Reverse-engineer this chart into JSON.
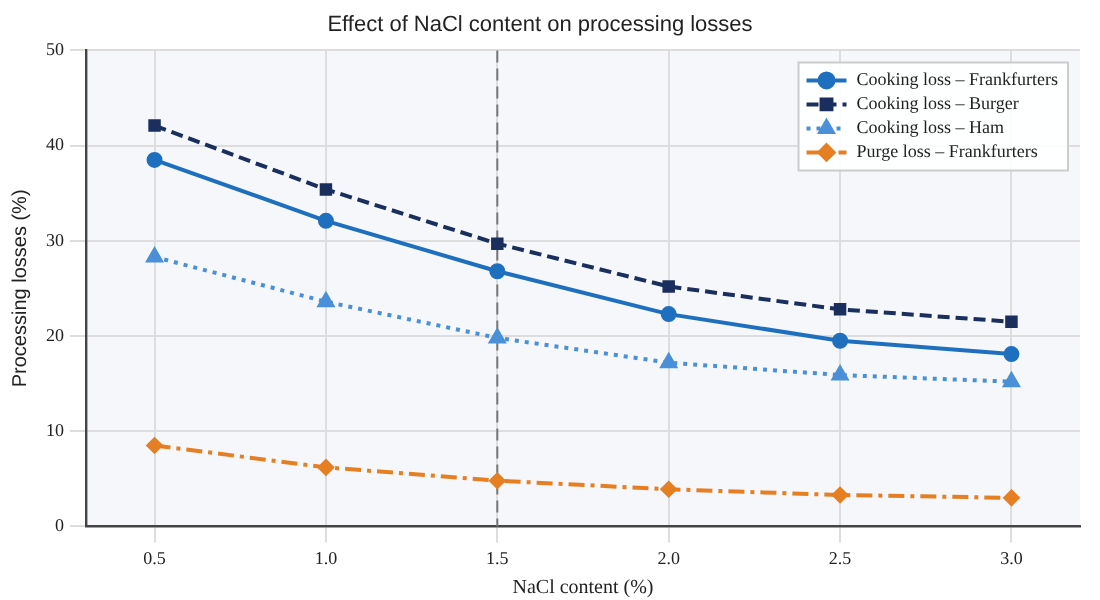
{
  "chart_data": {
    "type": "line",
    "title": "Effect of NaCl content on processing losses",
    "xlabel": "NaCl content (%)",
    "ylabel": "Processing losses (%)",
    "x": [
      0.5,
      1.0,
      1.5,
      2.0,
      2.5,
      3.0
    ],
    "xlim": [
      0.3,
      3.2
    ],
    "xticks": [
      {
        "value": 0.5,
        "label": "0.5"
      },
      {
        "value": 1.0,
        "label": "1.0"
      },
      {
        "value": 1.5,
        "label": "1.5"
      },
      {
        "value": 2.0,
        "label": "2.0"
      },
      {
        "value": 2.5,
        "label": "2.5"
      },
      {
        "value": 3.0,
        "label": "3.0"
      }
    ],
    "ylim": [
      0,
      50
    ],
    "yticks": [
      0,
      10,
      20,
      30,
      40,
      50
    ],
    "grid": true,
    "legend": "top right",
    "ref_lines": [
      {
        "axis": "x",
        "value": 1.5,
        "color": "#777777",
        "line_style": "dashed"
      }
    ],
    "series": [
      {
        "name": "Cooking loss – Frankfurters",
        "color": "#1f6fbf",
        "marker": "circle",
        "line_style": "solid",
        "values": [
          38.5,
          32.1,
          26.8,
          22.3,
          19.5,
          18.1
        ]
      },
      {
        "name": "Cooking loss – Burger",
        "color": "#1b2f5e",
        "marker": "square",
        "line_style": "dashed",
        "values": [
          42.1,
          35.4,
          29.7,
          25.2,
          22.8,
          21.5
        ]
      },
      {
        "name": "Cooking loss – Ham",
        "color": "#4a90d9",
        "marker": "triangle",
        "line_style": "dotted",
        "values": [
          28.3,
          23.6,
          19.8,
          17.2,
          15.9,
          15.2
        ]
      },
      {
        "name": "Purge loss – Frankfurters",
        "color": "#e67e22",
        "marker": "diamond",
        "line_style": "dashdot",
        "values": [
          8.5,
          6.2,
          4.8,
          3.9,
          3.3,
          3.0
        ]
      }
    ]
  }
}
